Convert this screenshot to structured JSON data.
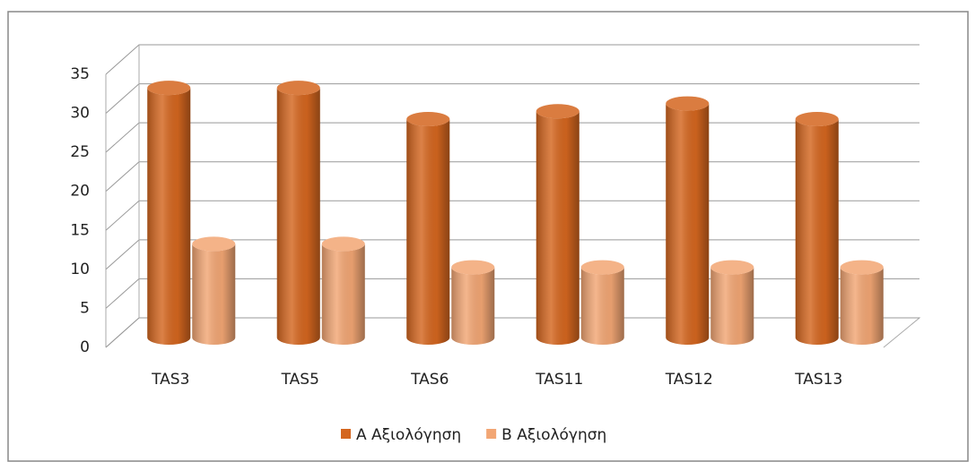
{
  "chart_data": {
    "type": "bar3d",
    "categories": [
      "TAS3",
      "TAS5",
      "TAS6",
      "TAS11",
      "TAS12",
      "TAS13"
    ],
    "series": [
      {
        "name": "A Αξιολόγηση",
        "color": "#d4661f",
        "values": [
          32,
          32,
          28,
          29,
          30,
          28
        ]
      },
      {
        "name": "B Αξιολόγηση",
        "color": "#f2a674",
        "values": [
          12,
          12,
          9,
          9,
          9,
          9
        ]
      }
    ],
    "ylim": [
      0,
      35
    ],
    "yticks": [
      0,
      5,
      10,
      15,
      20,
      25,
      30,
      35
    ],
    "grid": true,
    "legend": "bottom"
  }
}
